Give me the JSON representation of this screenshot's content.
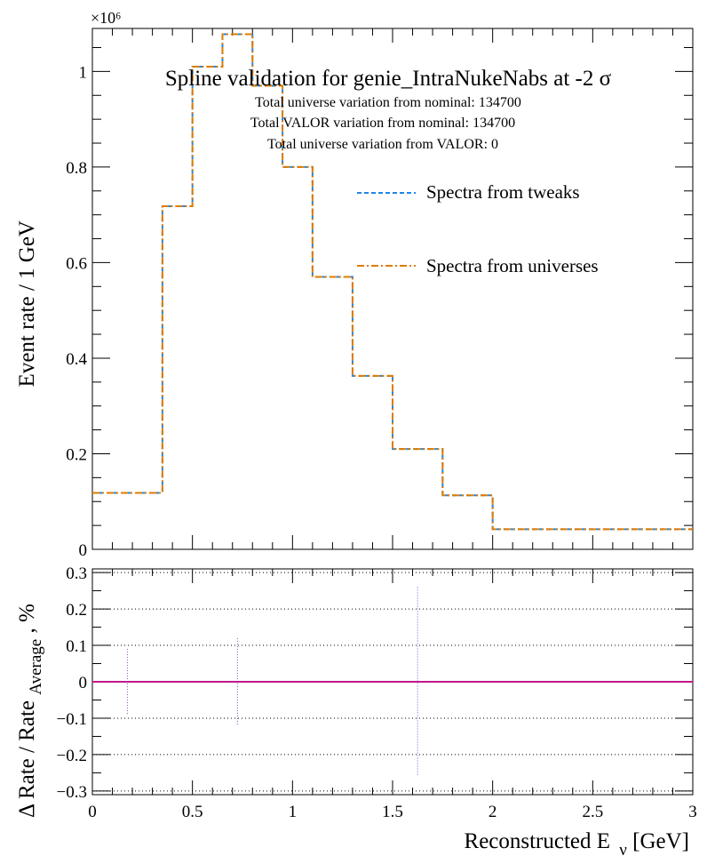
{
  "chart_data": [
    {
      "type": "line",
      "title": "Spline validation for genie_IntraNukeNabs at -2 σ",
      "annotations": [
        "Total universe variation from nominal: 134700",
        "Total VALOR variation from nominal: 134700",
        "Total universe variation from VALOR: 0"
      ],
      "ylabel": "Event rate / 1 GeV",
      "y_multiplier": "×10⁶",
      "xlim": [
        0,
        3
      ],
      "ylim": [
        0,
        1.09
      ],
      "yticks": [
        0,
        0.2,
        0.4,
        0.6,
        0.8,
        1
      ],
      "ytick_labels": [
        "0",
        "0.2",
        "0.4",
        "0.6",
        "0.8",
        "1"
      ],
      "legend_placement": "upper-right",
      "bin_edges": [
        0,
        0.35,
        0.5,
        0.65,
        0.8,
        0.95,
        1.1,
        1.3,
        1.5,
        1.75,
        2,
        3
      ],
      "series": [
        {
          "name": "Spectra from tweaks",
          "color": "#1e88e5",
          "style": "dashed",
          "values": [
            0.118,
            0.718,
            1.01,
            1.078,
            0.97,
            0.8,
            0.57,
            0.363,
            0.21,
            0.113,
            0.042
          ]
        },
        {
          "name": "Spectra from universes",
          "color": "#e07b00",
          "style": "dash-dot",
          "values": [
            0.118,
            0.718,
            1.01,
            1.078,
            0.97,
            0.8,
            0.57,
            0.363,
            0.21,
            0.113,
            0.042
          ]
        }
      ]
    },
    {
      "type": "line",
      "ylabel_main": "Δ Rate / Rate",
      "ylabel_sub": "Average",
      "ylabel_suffix": ", %",
      "xlabel_main": "Reconstructed E",
      "xlabel_sub": "ν",
      "xlabel_suffix": " [GeV]",
      "xlim": [
        0,
        3
      ],
      "ylim": [
        -0.31,
        0.31
      ],
      "xticks": [
        0,
        0.5,
        1,
        1.5,
        2,
        2.5,
        3
      ],
      "xtick_labels": [
        "0",
        "0.5",
        "1",
        "1.5",
        "2",
        "2.5",
        "3"
      ],
      "yticks": [
        -0.3,
        -0.2,
        -0.1,
        0,
        0.1,
        0.2,
        0.3
      ],
      "ytick_labels": [
        "−0.3",
        "−0.2",
        "−0.1",
        "0",
        "0.1",
        "0.2",
        "0.3"
      ],
      "grid": true,
      "line_color": "#c2188b",
      "error_color": "#7b3fc4",
      "x": [
        0.175,
        0.725,
        1.625
      ],
      "y": [
        0,
        0,
        0
      ],
      "errors": [
        0.09,
        0.12,
        0.26
      ]
    }
  ]
}
